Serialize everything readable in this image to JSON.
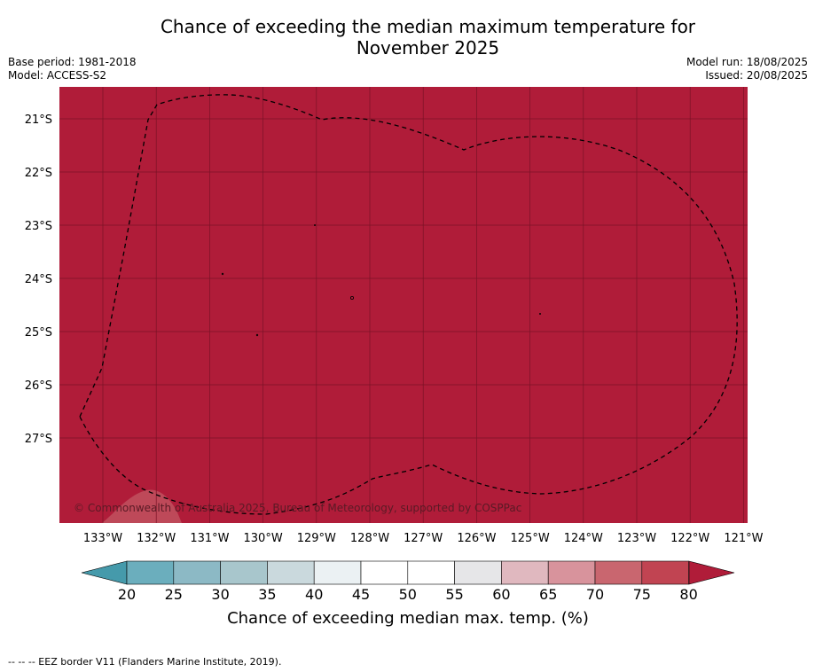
{
  "title": "Chance of exceeding the median maximum temperature for November 2025",
  "title_lines": [
    "Chance of exceeding the median maximum temperature for",
    "November 2025"
  ],
  "meta": {
    "base_period": "Base period: 1981-2018",
    "model": "Model: ACCESS-S2",
    "model_run": "Model run: 18/08/2025",
    "issued": "Issued: 20/08/2025"
  },
  "map": {
    "fill_color": "#b01c39",
    "lat_labels": [
      "21°S",
      "22°S",
      "23°S",
      "24°S",
      "25°S",
      "26°S",
      "27°S"
    ],
    "lon_labels": [
      "133°W",
      "132°W",
      "131°W",
      "130°W",
      "129°W",
      "128°W",
      "127°W",
      "126°W",
      "125°W",
      "124°W",
      "123°W",
      "122°W",
      "121°W"
    ],
    "credit": "© Commonwealth of Australia 2025, Bureau of Meteorology, supported by COSPPac",
    "border_style": "dashed"
  },
  "colorbar": {
    "ticks": [
      "20",
      "25",
      "30",
      "35",
      "40",
      "45",
      "50",
      "55",
      "60",
      "65",
      "70",
      "75",
      "80"
    ],
    "colors": [
      "#6baebd",
      "#8cb9c5",
      "#a8c6cc",
      "#cad9dd",
      "#ebf1f3",
      "#ffffff",
      "#ffffff",
      "#e6e6e8",
      "#e0b8bf",
      "#d8939c",
      "#c9666f",
      "#c14452"
    ],
    "under_color": "#459aab",
    "over_color": "#b01c39",
    "label": "Chance of exceeding median max. temp. (%)"
  },
  "footer": "-- -- -- EEZ border V11 (Flanders Marine Institute, 2019)."
}
